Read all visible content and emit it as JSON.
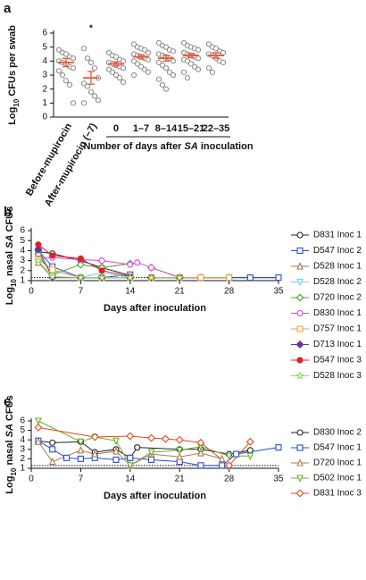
{
  "chart_data": [
    {
      "type": "strip",
      "panel": "a",
      "ylabel": [
        "Log",
        "10",
        " CFUs per swab"
      ],
      "categories": [
        "Before-mupirocin",
        "After-mupirocin (−7)",
        "0",
        "1–7",
        "8–14",
        "15–21",
        "22–35"
      ],
      "values": [
        [
          4.8,
          4.6,
          4.5,
          4.3,
          4.2,
          4.0,
          3.9,
          3.8,
          3.6,
          3.5,
          3.3,
          3.0,
          2.6,
          2.3,
          1.0
        ],
        [
          4.9,
          4.2,
          3.9,
          3.5,
          2.8,
          2.4,
          2.2,
          1.8,
          1.5,
          1.2,
          1.0
        ],
        [
          4.6,
          4.4,
          4.3,
          4.1,
          4.0,
          3.9,
          3.8,
          3.7,
          3.6,
          3.5,
          3.4,
          3.2,
          3.0,
          2.8,
          2.5
        ],
        [
          5.2,
          5.0,
          4.9,
          4.8,
          4.6,
          4.5,
          4.4,
          4.3,
          4.2,
          4.1,
          4.0,
          3.8,
          3.6,
          3.4,
          3.2,
          3.0
        ],
        [
          5.3,
          5.1,
          5.0,
          4.8,
          4.7,
          4.5,
          4.4,
          4.3,
          4.2,
          4.0,
          3.9,
          3.7,
          3.5,
          3.2,
          3.0,
          2.7,
          2.3,
          2.0
        ],
        [
          5.3,
          5.1,
          5.0,
          4.9,
          4.8,
          4.6,
          4.5,
          4.4,
          4.3,
          4.2,
          4.1,
          4.0,
          3.8,
          3.6,
          3.4,
          3.2,
          2.8
        ],
        [
          5.2,
          5.0,
          4.9,
          4.7,
          4.6,
          4.5,
          4.4,
          4.2,
          4.0,
          3.9,
          3.5,
          3.2
        ]
      ],
      "means": [
        3.9,
        2.8,
        3.8,
        4.3,
        4.2,
        4.4,
        4.4
      ],
      "errors": [
        0.3,
        0.45,
        0.15,
        0.15,
        0.2,
        0.15,
        0.2
      ],
      "color": "#888888",
      "mean_color": "#e8553a",
      "annotation": "*",
      "group_label": [
        "Number of days after ",
        "SA",
        " inoculation"
      ],
      "ylim": [
        0,
        6
      ],
      "yticks": [
        0,
        1,
        2,
        3,
        4,
        5,
        6
      ]
    },
    {
      "type": "line",
      "panel": "b",
      "ylabel": [
        "Log",
        "10",
        " nasal ",
        "SA",
        " CFUs"
      ],
      "xlabel": "Days after inoculation",
      "x": [
        1,
        3,
        7,
        10,
        14,
        15,
        17,
        21,
        24,
        28,
        31,
        35
      ],
      "series": [
        {
          "name": "D831 Inoc 1",
          "color": "#222222",
          "marker": "circle",
          "filled": false,
          "values": [
            3.9,
            3.7,
            3.0,
            2.3,
            1.5,
            null,
            1.3,
            1.3,
            1.3,
            1.3,
            1.3,
            1.3
          ]
        },
        {
          "name": "D547 Inoc 2",
          "color": "#2b4fd8",
          "marker": "square",
          "filled": false,
          "values": [
            4.0,
            2.4,
            1.3,
            1.3,
            1.6,
            null,
            1.3,
            1.3,
            1.3,
            1.3,
            1.3,
            1.3
          ]
        },
        {
          "name": "D528 Inoc 1",
          "color": "#a0785a",
          "marker": "triangle",
          "filled": false,
          "values": [
            2.8,
            1.3,
            1.3,
            1.3,
            1.3,
            null,
            1.3,
            1.3,
            1.3,
            1.3,
            null,
            null
          ]
        },
        {
          "name": "D528 Inoc 2",
          "color": "#5fd8e8",
          "marker": "triangle-down",
          "filled": false,
          "values": [
            3.3,
            2.0,
            1.3,
            1.8,
            1.3,
            null,
            1.3,
            1.3,
            1.3,
            null,
            null,
            null
          ]
        },
        {
          "name": "D720 Inoc 2",
          "color": "#4aa02c",
          "marker": "diamond",
          "filled": false,
          "values": [
            3.6,
            1.6,
            2.6,
            2.3,
            2.7,
            null,
            2.3,
            1.3,
            1.3,
            null,
            null,
            null
          ]
        },
        {
          "name": "D830 Inoc 1",
          "color": "#e040e0",
          "marker": "circle",
          "filled": false,
          "values": [
            3.2,
            3.3,
            3.1,
            3.0,
            2.6,
            2.8,
            2.3,
            1.3,
            1.3,
            null,
            null,
            null
          ]
        },
        {
          "name": "D757 Inoc 1",
          "color": "#f0a040",
          "marker": "square",
          "filled": false,
          "values": [
            3.1,
            2.1,
            1.3,
            1.3,
            1.3,
            null,
            1.3,
            1.3,
            1.3,
            1.3,
            null,
            null
          ]
        },
        {
          "name": "D713 Inoc 1",
          "color": "#7030a0",
          "marker": "diamond",
          "filled": true,
          "values": [
            4.1,
            1.3,
            1.3,
            1.3,
            1.3,
            null,
            1.3,
            1.3,
            null,
            null,
            null,
            null
          ]
        },
        {
          "name": "D547 Inoc 3",
          "color": "#e02020",
          "marker": "circle",
          "filled": true,
          "values": [
            4.6,
            3.5,
            3.2,
            2.0,
            1.4,
            null,
            1.3,
            1.3,
            null,
            null,
            null,
            null
          ]
        },
        {
          "name": "D528 Inoc 3",
          "color": "#8ee06a",
          "marker": "star",
          "filled": false,
          "values": [
            3.0,
            1.4,
            1.3,
            1.3,
            1.3,
            null,
            1.3,
            1.3,
            null,
            null,
            null,
            null
          ]
        }
      ],
      "reference_line": 1.3,
      "xlim": [
        0,
        35
      ],
      "xticks": [
        0,
        7,
        14,
        21,
        28,
        35
      ],
      "ylim": [
        1,
        6
      ],
      "yticks": [
        1,
        2,
        3,
        4,
        5,
        6
      ]
    },
    {
      "type": "line",
      "panel": "c",
      "ylabel": [
        "Log",
        "10",
        " nasal ",
        "SA",
        " CFUs"
      ],
      "xlabel": "Days after inoculation",
      "series": [
        {
          "name": "D830 Inoc 2",
          "color": "#222222",
          "marker": "circle",
          "filled": false,
          "x": [
            1,
            3,
            7,
            9,
            12,
            14,
            15,
            21,
            24,
            28,
            31
          ],
          "values": [
            3.9,
            3.7,
            3.8,
            2.7,
            3.0,
            2.1,
            3.2,
            3.0,
            3.0,
            2.5,
            2.9
          ]
        },
        {
          "name": "D547 Inoc 1",
          "color": "#2a4ad8",
          "marker": "square",
          "filled": false,
          "x": [
            1,
            3,
            5,
            7,
            9,
            12,
            14,
            17,
            21,
            24,
            27,
            29,
            35
          ],
          "values": [
            3.9,
            3.0,
            2.1,
            2.0,
            2.1,
            1.9,
            2.1,
            1.9,
            1.7,
            1.3,
            1.3,
            2.5,
            3.2
          ]
        },
        {
          "name": "D720 Inoc 1",
          "color": "#b07a50",
          "marker": "triangle",
          "filled": false,
          "x": [
            1,
            3,
            7,
            9,
            12,
            14,
            17,
            21,
            24,
            27
          ],
          "values": [
            3.8,
            1.7,
            2.9,
            2.5,
            2.8,
            1.3,
            2.5,
            2.2,
            2.6,
            2.0
          ]
        },
        {
          "name": "D502 Inoc 1",
          "color": "#66b030",
          "marker": "triangle-down",
          "filled": false,
          "x": [
            1,
            7,
            9,
            12,
            14,
            17,
            21,
            24,
            28,
            31
          ],
          "values": [
            6.0,
            3.8,
            4.3,
            3.9,
            1.3,
            2.7,
            2.9,
            3.3,
            2.3,
            2.3
          ]
        },
        {
          "name": "D831 Inoc 3",
          "color": "#e04a1a",
          "marker": "diamond",
          "filled": false,
          "x": [
            1,
            9,
            14,
            17,
            19,
            21,
            24,
            28,
            31
          ],
          "values": [
            5.3,
            4.3,
            4.4,
            4.2,
            4.1,
            4.0,
            3.7,
            1.3,
            3.8
          ]
        }
      ],
      "reference_line": 1.3,
      "xlim": [
        0,
        35
      ],
      "xticks": [
        0,
        7,
        14,
        21,
        28,
        35
      ],
      "ylim": [
        1,
        6
      ],
      "yticks": [
        1,
        2,
        3,
        4,
        5,
        6
      ]
    }
  ]
}
